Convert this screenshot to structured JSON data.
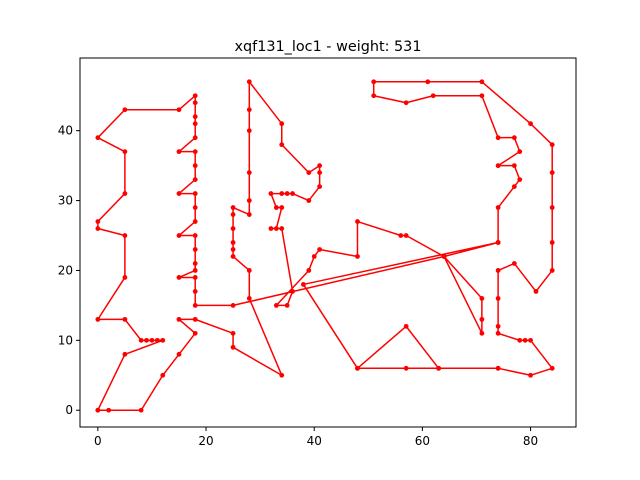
{
  "chart_data": {
    "type": "line",
    "title": "xqf131_loc1 - weight: 531",
    "xlabel": "",
    "ylabel": "",
    "xlim": [
      -3.3,
      88.4
    ],
    "ylim": [
      -2.4,
      50.4
    ],
    "xticks": [
      0,
      20,
      40,
      60,
      80
    ],
    "yticks": [
      0,
      10,
      20,
      30,
      40
    ],
    "grid": false,
    "color": "#ff0000",
    "series": [
      {
        "points": [
          [
            0,
            0
          ],
          [
            2,
            0
          ],
          [
            8,
            0
          ],
          [
            12,
            5
          ],
          [
            15,
            8
          ],
          [
            18,
            11
          ],
          [
            15,
            13
          ],
          [
            18,
            13
          ],
          [
            25,
            11
          ],
          [
            25,
            9
          ],
          [
            34,
            5
          ],
          [
            28,
            16
          ],
          [
            28,
            20
          ],
          [
            25,
            22
          ],
          [
            25,
            23
          ],
          [
            25,
            24
          ],
          [
            25,
            26
          ],
          [
            25,
            28
          ],
          [
            25,
            29
          ],
          [
            28,
            28
          ],
          [
            28,
            30
          ],
          [
            28,
            34
          ],
          [
            28,
            40
          ],
          [
            28,
            43
          ],
          [
            28,
            47
          ],
          [
            34,
            41
          ],
          [
            34,
            38
          ],
          [
            39,
            34
          ],
          [
            41,
            35
          ],
          [
            41,
            34
          ],
          [
            41,
            32
          ],
          [
            39,
            30
          ],
          [
            36,
            31
          ],
          [
            35,
            31
          ],
          [
            34,
            31
          ],
          [
            32,
            31
          ],
          [
            33,
            29
          ],
          [
            34,
            29
          ],
          [
            33,
            26
          ],
          [
            32,
            26
          ],
          [
            34,
            26
          ],
          [
            36,
            17
          ],
          [
            35,
            15
          ],
          [
            33,
            15
          ],
          [
            39,
            20
          ],
          [
            40,
            22
          ],
          [
            41,
            23
          ],
          [
            48,
            22
          ],
          [
            48,
            27
          ],
          [
            56,
            25
          ],
          [
            57,
            25
          ],
          [
            64,
            22
          ],
          [
            71,
            16
          ],
          [
            71,
            13
          ],
          [
            71,
            11
          ],
          [
            64,
            22
          ],
          [
            74,
            24
          ],
          [
            74,
            29
          ],
          [
            77,
            32
          ],
          [
            78,
            33
          ],
          [
            77,
            35
          ],
          [
            74,
            35
          ],
          [
            78,
            37
          ],
          [
            77,
            39
          ],
          [
            74,
            39
          ],
          [
            71,
            45
          ],
          [
            62,
            45
          ],
          [
            57,
            44
          ],
          [
            51,
            45
          ],
          [
            51,
            47
          ],
          [
            61,
            47
          ],
          [
            71,
            47
          ],
          [
            80,
            41
          ],
          [
            84,
            38
          ],
          [
            84,
            34
          ],
          [
            84,
            29
          ],
          [
            84,
            24
          ],
          [
            84,
            20
          ],
          [
            81,
            17
          ],
          [
            77,
            21
          ],
          [
            74,
            20
          ],
          [
            74,
            16
          ],
          [
            74,
            12
          ],
          [
            74,
            11
          ],
          [
            78,
            10
          ],
          [
            79,
            10
          ],
          [
            80,
            10
          ],
          [
            84,
            6
          ],
          [
            80,
            5
          ],
          [
            74,
            6
          ],
          [
            63,
            6
          ],
          [
            57,
            12
          ],
          [
            48,
            6
          ],
          [
            63,
            6
          ],
          [
            74,
            6
          ],
          [
            57,
            6
          ],
          [
            48,
            6
          ],
          [
            38,
            18
          ],
          [
            74,
            24
          ],
          [
            64,
            22
          ],
          [
            25,
            15
          ],
          [
            18,
            15
          ],
          [
            18,
            17
          ],
          [
            18,
            19
          ],
          [
            15,
            19
          ],
          [
            18,
            20
          ],
          [
            18,
            21
          ],
          [
            18,
            23
          ],
          [
            18,
            25
          ],
          [
            15,
            25
          ],
          [
            18,
            27
          ],
          [
            18,
            29
          ],
          [
            18,
            31
          ],
          [
            15,
            31
          ],
          [
            18,
            33
          ],
          [
            18,
            35
          ],
          [
            18,
            37
          ],
          [
            15,
            37
          ],
          [
            18,
            39
          ],
          [
            18,
            41
          ],
          [
            18,
            42
          ],
          [
            18,
            44
          ],
          [
            18,
            45
          ],
          [
            15,
            43
          ],
          [
            5,
            43
          ],
          [
            0,
            39
          ],
          [
            5,
            37
          ],
          [
            5,
            31
          ],
          [
            0,
            27
          ],
          [
            0,
            26
          ],
          [
            5,
            25
          ],
          [
            5,
            19
          ],
          [
            0,
            13
          ],
          [
            5,
            13
          ],
          [
            8,
            10
          ],
          [
            9,
            10
          ],
          [
            10,
            10
          ],
          [
            11,
            10
          ],
          [
            12,
            10
          ],
          [
            5,
            8
          ],
          [
            0,
            0
          ]
        ]
      }
    ]
  }
}
